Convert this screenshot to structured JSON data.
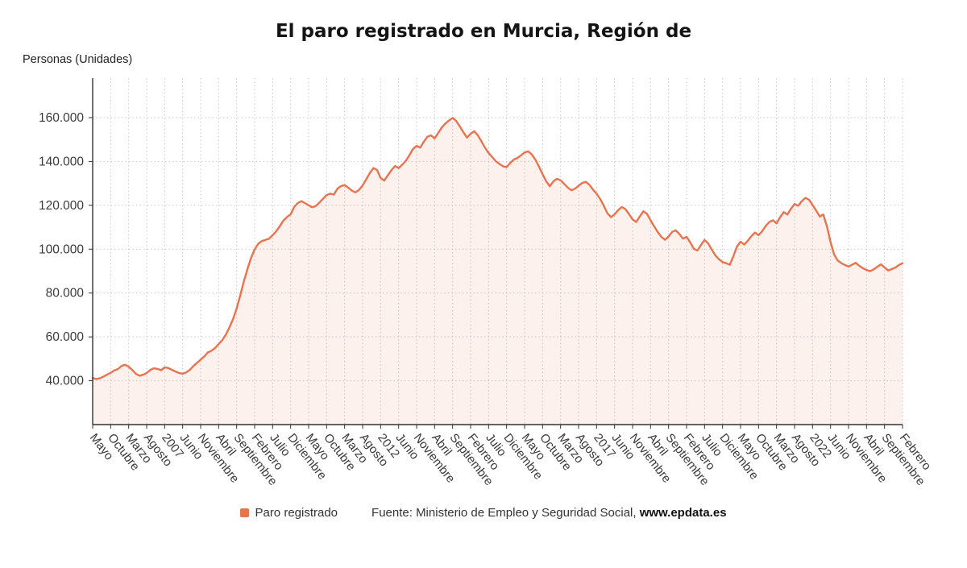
{
  "page": {
    "title": "El paro registrado en Murcia, Región de",
    "y_axis_title": "Personas (Unidades)",
    "legend_label": "Paro registrado",
    "source_prefix": "Fuente: Ministerio de Empleo y Seguridad Social, ",
    "source_link": "www.epdata.es"
  },
  "chart_data": {
    "type": "area",
    "title": "El paro registrado en Murcia, Región de",
    "xlabel": "",
    "ylabel": "Personas (Unidades)",
    "series_name": "Paro registrado",
    "legend_position": "bottom",
    "grid": true,
    "ylim": [
      20000,
      178000
    ],
    "colors": {
      "line": "#e8734e",
      "fill": "rgba(232,115,76,0.10)",
      "grid": "#c9c9c9",
      "axis": "#333333",
      "tick_label": "#3a3a3a"
    },
    "y_ticks": [
      {
        "value": 40000,
        "label": "40.000"
      },
      {
        "value": 60000,
        "label": "60.000"
      },
      {
        "value": 80000,
        "label": "80.000"
      },
      {
        "value": 100000,
        "label": "100.000"
      },
      {
        "value": 120000,
        "label": "120.000"
      },
      {
        "value": 140000,
        "label": "140.000"
      },
      {
        "value": 160000,
        "label": "160.000"
      }
    ],
    "x_ticks": [
      {
        "index": 0,
        "label": "Mayo"
      },
      {
        "index": 5,
        "label": "Octubre"
      },
      {
        "index": 10,
        "label": "Marzo"
      },
      {
        "index": 15,
        "label": "Agosto"
      },
      {
        "index": 20,
        "label": "2007"
      },
      {
        "index": 25,
        "label": "Junio"
      },
      {
        "index": 30,
        "label": "Noviembre"
      },
      {
        "index": 35,
        "label": "Abril"
      },
      {
        "index": 40,
        "label": "Septiembre"
      },
      {
        "index": 45,
        "label": "Febrero"
      },
      {
        "index": 50,
        "label": "Julio"
      },
      {
        "index": 55,
        "label": "Diciembre"
      },
      {
        "index": 60,
        "label": "Mayo"
      },
      {
        "index": 65,
        "label": "Octubre"
      },
      {
        "index": 70,
        "label": "Marzo"
      },
      {
        "index": 75,
        "label": "Agosto"
      },
      {
        "index": 80,
        "label": "2012"
      },
      {
        "index": 85,
        "label": "Junio"
      },
      {
        "index": 90,
        "label": "Noviembre"
      },
      {
        "index": 95,
        "label": "Abril"
      },
      {
        "index": 100,
        "label": "Septiembre"
      },
      {
        "index": 105,
        "label": "Febrero"
      },
      {
        "index": 110,
        "label": "Julio"
      },
      {
        "index": 115,
        "label": "Diciembre"
      },
      {
        "index": 120,
        "label": "Mayo"
      },
      {
        "index": 125,
        "label": "Octubre"
      },
      {
        "index": 130,
        "label": "Marzo"
      },
      {
        "index": 135,
        "label": "Agosto"
      },
      {
        "index": 140,
        "label": "2017"
      },
      {
        "index": 145,
        "label": "Junio"
      },
      {
        "index": 150,
        "label": "Noviembre"
      },
      {
        "index": 155,
        "label": "Abril"
      },
      {
        "index": 160,
        "label": "Septiembre"
      },
      {
        "index": 165,
        "label": "Febrero"
      },
      {
        "index": 170,
        "label": "Julio"
      },
      {
        "index": 175,
        "label": "Diciembre"
      },
      {
        "index": 180,
        "label": "Mayo"
      },
      {
        "index": 185,
        "label": "Octubre"
      },
      {
        "index": 190,
        "label": "Marzo"
      },
      {
        "index": 195,
        "label": "Agosto"
      },
      {
        "index": 200,
        "label": "2022"
      },
      {
        "index": 205,
        "label": "Junio"
      },
      {
        "index": 210,
        "label": "Noviembre"
      },
      {
        "index": 215,
        "label": "Abril"
      },
      {
        "index": 220,
        "label": "Septiembre"
      },
      {
        "index": 225,
        "label": "Febrero"
      }
    ],
    "values": [
      41200,
      40800,
      41100,
      41900,
      42800,
      43600,
      44700,
      45300,
      46700,
      47300,
      46400,
      44900,
      43200,
      42300,
      42700,
      43500,
      44900,
      45700,
      45400,
      44800,
      46100,
      45800,
      45000,
      44200,
      43500,
      43200,
      43800,
      45000,
      46700,
      48200,
      49600,
      51100,
      52900,
      53700,
      54900,
      56700,
      58500,
      61000,
      64300,
      68100,
      73000,
      78900,
      85300,
      90900,
      96000,
      99900,
      102500,
      103700,
      104200,
      104800,
      106400,
      108200,
      110500,
      113000,
      114700,
      115900,
      119300,
      121100,
      121900,
      121000,
      120000,
      119100,
      119700,
      121300,
      123000,
      124700,
      125300,
      124900,
      127600,
      128800,
      129200,
      128100,
      126700,
      125900,
      127000,
      129100,
      131900,
      134700,
      137000,
      136100,
      132500,
      131300,
      133700,
      136000,
      137900,
      137000,
      138500,
      140300,
      142900,
      145700,
      147100,
      146300,
      149000,
      151300,
      151900,
      150500,
      153000,
      155500,
      157300,
      158700,
      159900,
      158500,
      156000,
      153300,
      150900,
      152600,
      153800,
      152000,
      149200,
      146300,
      143900,
      142000,
      140100,
      138900,
      137800,
      137400,
      139300,
      140900,
      141600,
      142800,
      144100,
      144600,
      143200,
      140800,
      137600,
      134200,
      131000,
      128700,
      130900,
      132100,
      131400,
      129800,
      128100,
      126900,
      127600,
      128900,
      130200,
      130700,
      129400,
      127200,
      125300,
      122900,
      119800,
      116400,
      114600,
      115900,
      117800,
      119200,
      118300,
      116000,
      113600,
      112400,
      114900,
      117300,
      116100,
      113200,
      110400,
      107800,
      105600,
      104300,
      105800,
      107900,
      108600,
      106900,
      104800,
      105600,
      103100,
      100200,
      99400,
      101900,
      104200,
      102600,
      99800,
      97200,
      95400,
      94100,
      93600,
      92900,
      96800,
      101200,
      103400,
      102100,
      103800,
      105900,
      107600,
      106400,
      108200,
      110600,
      112400,
      113200,
      111800,
      114600,
      116900,
      115800,
      118400,
      120600,
      119800,
      121900,
      123400,
      122600,
      120200,
      117600,
      114900,
      115800,
      110400,
      103200,
      97600,
      94800,
      93600,
      92800,
      92100,
      92900,
      93800,
      92400,
      91300,
      90500,
      90000,
      90800,
      92000,
      93100,
      91700,
      90300,
      90900,
      91600,
      92800,
      93600
    ]
  }
}
